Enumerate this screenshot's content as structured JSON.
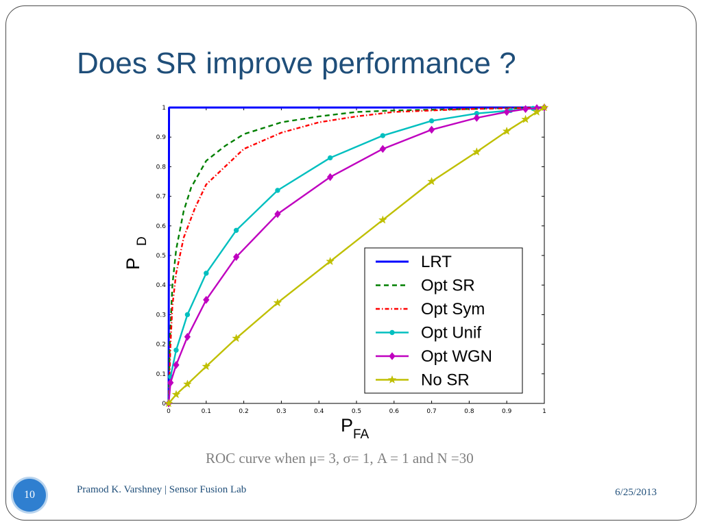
{
  "slide": {
    "title": "Does SR improve performance ?",
    "caption": "ROC curve when μ= 3, σ= 1, A = 1 and N =30",
    "page_number": "10",
    "footer_left": "Pramod K. Varshney | Sensor Fusion Lab",
    "footer_right": "6/25/2013"
  },
  "chart_data": {
    "type": "line",
    "title": "",
    "xlabel": {
      "main": "P",
      "sub": "FA"
    },
    "ylabel": {
      "main": "P",
      "sub": "D"
    },
    "xlim": [
      0,
      1
    ],
    "ylim": [
      0,
      1
    ],
    "xticks": [
      "0",
      "0.1",
      "0.2",
      "0.3",
      "0.4",
      "0.5",
      "0.6",
      "0.7",
      "0.8",
      "0.9",
      "1"
    ],
    "yticks": [
      "0",
      "0.1",
      "0.2",
      "0.3",
      "0.4",
      "0.5",
      "0.6",
      "0.7",
      "0.8",
      "0.9",
      "1"
    ],
    "grid": false,
    "legend_position": "bottom-right",
    "series": [
      {
        "name": "LRT",
        "color": "#0000ff",
        "style": "solid",
        "marker": "none",
        "points": [
          [
            0,
            0
          ],
          [
            0.001,
            0.999
          ],
          [
            0.002,
            1
          ],
          [
            1,
            1
          ]
        ]
      },
      {
        "name": "Opt SR",
        "color": "#007f00",
        "style": "dashed",
        "marker": "none",
        "points": [
          [
            0,
            0
          ],
          [
            0.003,
            0.2
          ],
          [
            0.01,
            0.4
          ],
          [
            0.02,
            0.52
          ],
          [
            0.04,
            0.65
          ],
          [
            0.06,
            0.73
          ],
          [
            0.1,
            0.82
          ],
          [
            0.15,
            0.87
          ],
          [
            0.2,
            0.91
          ],
          [
            0.3,
            0.95
          ],
          [
            0.4,
            0.97
          ],
          [
            0.5,
            0.985
          ],
          [
            0.6,
            0.99
          ],
          [
            0.8,
            0.995
          ],
          [
            1,
            1
          ]
        ]
      },
      {
        "name": "Opt Sym",
        "color": "#ff0000",
        "style": "dashdot",
        "marker": "none",
        "points": [
          [
            0,
            0
          ],
          [
            0.005,
            0.2
          ],
          [
            0.01,
            0.33
          ],
          [
            0.02,
            0.44
          ],
          [
            0.04,
            0.56
          ],
          [
            0.07,
            0.66
          ],
          [
            0.1,
            0.74
          ],
          [
            0.15,
            0.8
          ],
          [
            0.2,
            0.86
          ],
          [
            0.3,
            0.915
          ],
          [
            0.4,
            0.95
          ],
          [
            0.5,
            0.97
          ],
          [
            0.6,
            0.985
          ],
          [
            0.8,
            0.995
          ],
          [
            1,
            1
          ]
        ]
      },
      {
        "name": "Opt Unif",
        "color": "#00bfbf",
        "style": "solid",
        "marker": "dot",
        "points": [
          [
            0,
            0
          ],
          [
            0.005,
            0.09
          ],
          [
            0.02,
            0.18
          ],
          [
            0.05,
            0.3
          ],
          [
            0.1,
            0.44
          ],
          [
            0.18,
            0.585
          ],
          [
            0.29,
            0.72
          ],
          [
            0.43,
            0.83
          ],
          [
            0.57,
            0.905
          ],
          [
            0.7,
            0.955
          ],
          [
            0.82,
            0.98
          ],
          [
            0.91,
            0.99
          ],
          [
            0.97,
            0.997
          ],
          [
            1,
            1
          ]
        ]
      },
      {
        "name": "Opt WGN",
        "color": "#bf00bf",
        "style": "solid",
        "marker": "diamond",
        "points": [
          [
            0,
            0
          ],
          [
            0.005,
            0.07
          ],
          [
            0.02,
            0.13
          ],
          [
            0.05,
            0.225
          ],
          [
            0.1,
            0.35
          ],
          [
            0.18,
            0.495
          ],
          [
            0.29,
            0.64
          ],
          [
            0.43,
            0.765
          ],
          [
            0.57,
            0.86
          ],
          [
            0.7,
            0.925
          ],
          [
            0.82,
            0.965
          ],
          [
            0.9,
            0.985
          ],
          [
            0.95,
            0.995
          ],
          [
            0.98,
            0.998
          ],
          [
            1,
            1
          ]
        ]
      },
      {
        "name": "No SR",
        "color": "#bfbf00",
        "style": "solid",
        "marker": "star",
        "points": [
          [
            0,
            0
          ],
          [
            0.02,
            0.03
          ],
          [
            0.05,
            0.065
          ],
          [
            0.1,
            0.125
          ],
          [
            0.18,
            0.22
          ],
          [
            0.29,
            0.34
          ],
          [
            0.43,
            0.48
          ],
          [
            0.57,
            0.62
          ],
          [
            0.7,
            0.75
          ],
          [
            0.82,
            0.85
          ],
          [
            0.9,
            0.92
          ],
          [
            0.95,
            0.96
          ],
          [
            0.98,
            0.985
          ],
          [
            1,
            1
          ]
        ]
      }
    ]
  }
}
